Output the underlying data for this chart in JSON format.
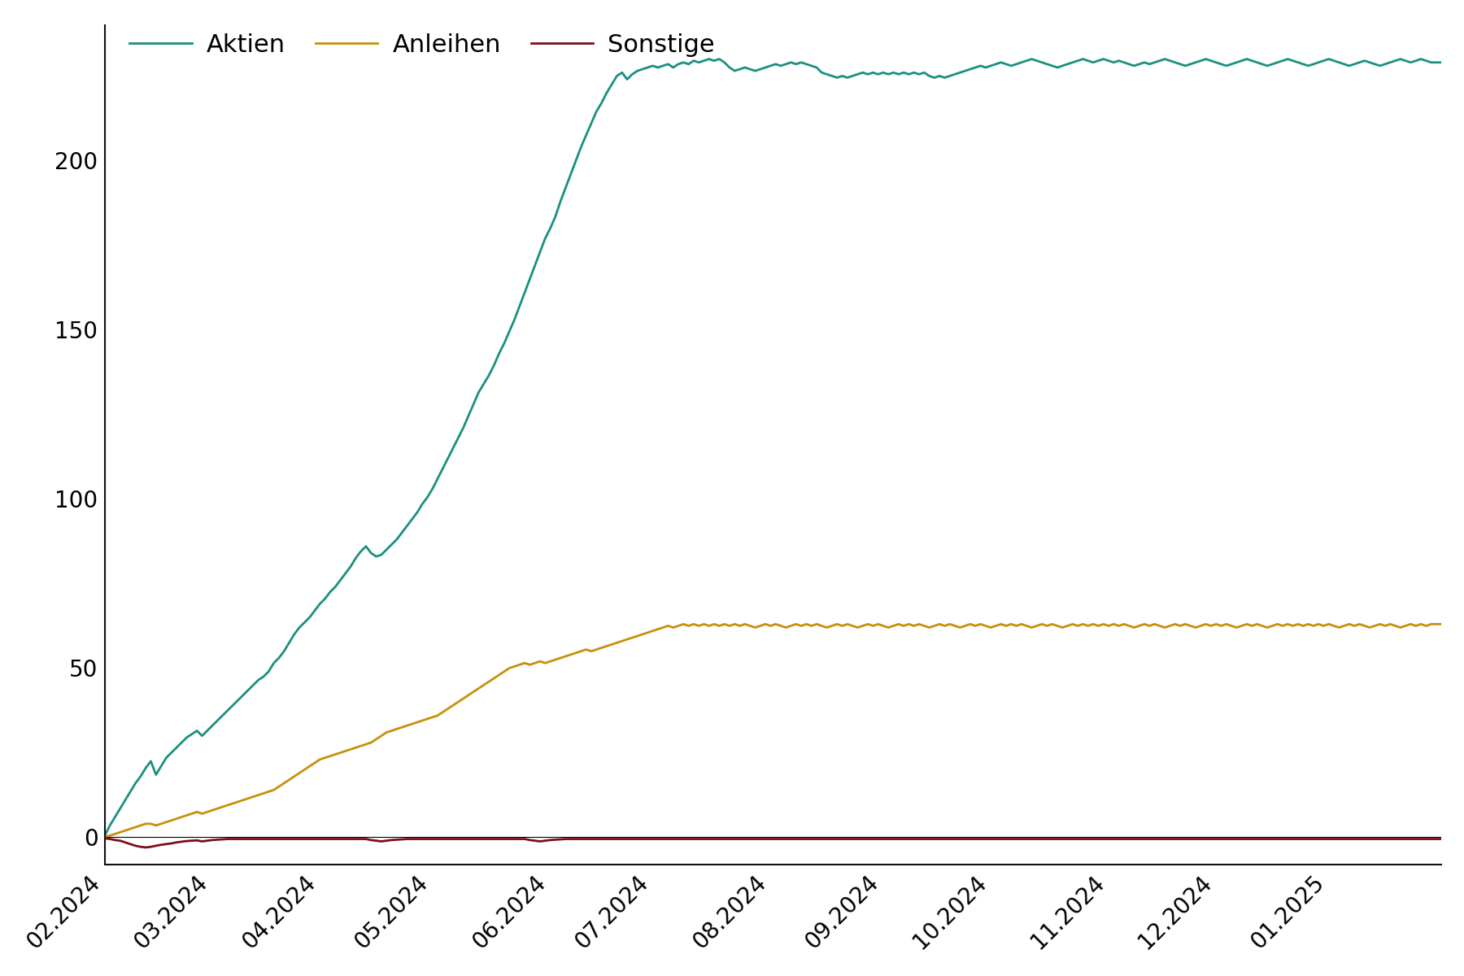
{
  "legend_labels": [
    "Aktien",
    "Anleihen",
    "Sonstige"
  ],
  "colors": {
    "Aktien": "#1a9080",
    "Anleihen": "#c8900a",
    "Sonstige": "#7b0d1e"
  },
  "line_width": 2.0,
  "x_tick_labels": [
    "02.2024",
    "03.2024",
    "04.2024",
    "05.2024",
    "06.2024",
    "07.2024",
    "08.2024",
    "09.2024",
    "10.2024",
    "11.2024",
    "12.2024",
    "01.2025"
  ],
  "ylim": [
    -8,
    240
  ],
  "yticks": [
    0,
    50,
    100,
    150,
    200
  ],
  "background_color": "#ffffff",
  "spine_color": "#111111",
  "tick_label_fontsize": 20,
  "legend_fontsize": 22,
  "Aktien": [
    0.5,
    3.5,
    6.0,
    8.5,
    11.0,
    13.5,
    16.0,
    18.0,
    20.5,
    22.5,
    18.5,
    21.0,
    23.5,
    25.0,
    26.5,
    28.0,
    29.5,
    30.5,
    31.5,
    30.0,
    31.5,
    33.0,
    34.5,
    36.0,
    37.5,
    39.0,
    40.5,
    42.0,
    43.5,
    45.0,
    46.5,
    47.5,
    49.0,
    51.5,
    53.0,
    55.0,
    57.5,
    60.0,
    62.0,
    63.5,
    65.0,
    67.0,
    69.0,
    70.5,
    72.5,
    74.0,
    76.0,
    78.0,
    80.0,
    82.5,
    84.5,
    86.0,
    84.0,
    83.0,
    83.5,
    85.0,
    86.5,
    88.0,
    90.0,
    92.0,
    94.0,
    96.0,
    98.5,
    100.5,
    103.0,
    106.0,
    109.0,
    112.0,
    115.0,
    118.0,
    121.0,
    124.5,
    128.0,
    131.5,
    134.0,
    136.5,
    139.5,
    143.0,
    146.0,
    149.5,
    153.0,
    157.0,
    161.0,
    165.0,
    169.0,
    173.0,
    177.0,
    180.0,
    183.5,
    188.0,
    192.0,
    196.0,
    200.0,
    204.0,
    207.5,
    211.0,
    214.5,
    217.0,
    220.0,
    222.5,
    225.0,
    226.0,
    224.0,
    225.5,
    226.5,
    227.0,
    227.5,
    228.0,
    227.5,
    228.0,
    228.5,
    227.5,
    228.5,
    229.0,
    228.5,
    229.5,
    229.0,
    229.5,
    230.0,
    229.5,
    230.0,
    229.0,
    227.5,
    226.5,
    227.0,
    227.5,
    227.0,
    226.5,
    227.0,
    227.5,
    228.0,
    228.5,
    228.0,
    228.5,
    229.0,
    228.5,
    229.0,
    228.5,
    228.0,
    227.5,
    226.0,
    225.5,
    225.0,
    224.5,
    225.0,
    224.5,
    225.0,
    225.5,
    226.0,
    225.5,
    226.0,
    225.5,
    226.0,
    225.5,
    226.0,
    225.5,
    226.0,
    225.5,
    226.0,
    225.5,
    226.0,
    225.0,
    224.5,
    225.0,
    224.5,
    225.0,
    225.5,
    226.0,
    226.5,
    227.0,
    227.5,
    228.0,
    227.5,
    228.0,
    228.5,
    229.0,
    228.5,
    228.0,
    228.5,
    229.0,
    229.5,
    230.0,
    229.5,
    229.0,
    228.5,
    228.0,
    227.5,
    228.0,
    228.5,
    229.0,
    229.5,
    230.0,
    229.5,
    229.0,
    229.5,
    230.0,
    229.5,
    229.0,
    229.5,
    229.0,
    228.5,
    228.0,
    228.5,
    229.0,
    228.5,
    229.0,
    229.5,
    230.0,
    229.5,
    229.0,
    228.5,
    228.0,
    228.5,
    229.0,
    229.5,
    230.0,
    229.5,
    229.0,
    228.5,
    228.0,
    228.5,
    229.0,
    229.5,
    230.0,
    229.5,
    229.0,
    228.5,
    228.0,
    228.5,
    229.0,
    229.5,
    230.0,
    229.5,
    229.0,
    228.5,
    228.0,
    228.5,
    229.0,
    229.5,
    230.0,
    229.5,
    229.0,
    228.5,
    228.0,
    228.5,
    229.0,
    229.5,
    229.0,
    228.5,
    228.0,
    228.5,
    229.0,
    229.5,
    230.0,
    229.5,
    229.0,
    229.5,
    230.0,
    229.5,
    229.0
  ],
  "Anleihen": [
    0.2,
    0.5,
    1.0,
    1.5,
    2.0,
    2.5,
    3.0,
    3.5,
    4.0,
    4.0,
    3.5,
    4.0,
    4.5,
    5.0,
    5.5,
    6.0,
    6.5,
    7.0,
    7.5,
    7.0,
    7.5,
    8.0,
    8.5,
    9.0,
    9.5,
    10.0,
    10.5,
    11.0,
    11.5,
    12.0,
    12.5,
    13.0,
    13.5,
    14.0,
    15.0,
    16.0,
    17.0,
    18.0,
    19.0,
    20.0,
    21.0,
    22.0,
    23.0,
    23.5,
    24.0,
    24.5,
    25.0,
    25.5,
    26.0,
    26.5,
    27.0,
    27.5,
    28.0,
    29.0,
    30.0,
    31.0,
    31.5,
    32.0,
    32.5,
    33.0,
    33.5,
    34.0,
    34.5,
    35.0,
    35.5,
    36.0,
    37.0,
    38.0,
    39.0,
    40.0,
    41.0,
    42.0,
    43.0,
    44.0,
    45.0,
    46.0,
    47.0,
    48.0,
    49.0,
    50.0,
    50.5,
    51.0,
    51.5,
    51.0,
    51.5,
    52.0,
    51.5,
    52.0,
    52.5,
    53.0,
    53.5,
    54.0,
    54.5,
    55.0,
    55.5,
    55.0,
    55.5,
    56.0,
    56.5,
    57.0,
    57.5,
    58.0,
    58.5,
    59.0,
    59.5,
    60.0,
    60.5,
    61.0,
    61.5,
    62.0,
    62.5,
    62.0,
    62.5,
    63.0,
    62.5,
    63.0,
    62.5,
    63.0,
    62.5,
    63.0,
    62.5,
    63.0,
    62.5,
    63.0,
    62.5,
    63.0,
    62.5,
    62.0,
    62.5,
    63.0,
    62.5,
    63.0,
    62.5,
    62.0,
    62.5,
    63.0,
    62.5,
    63.0,
    62.5,
    63.0,
    62.5,
    62.0,
    62.5,
    63.0,
    62.5,
    63.0,
    62.5,
    62.0,
    62.5,
    63.0,
    62.5,
    63.0,
    62.5,
    62.0,
    62.5,
    63.0,
    62.5,
    63.0,
    62.5,
    63.0,
    62.5,
    62.0,
    62.5,
    63.0,
    62.5,
    63.0,
    62.5,
    62.0,
    62.5,
    63.0,
    62.5,
    63.0,
    62.5,
    62.0,
    62.5,
    63.0,
    62.5,
    63.0,
    62.5,
    63.0,
    62.5,
    62.0,
    62.5,
    63.0,
    62.5,
    63.0,
    62.5,
    62.0,
    62.5,
    63.0,
    62.5,
    63.0,
    62.5,
    63.0,
    62.5,
    63.0,
    62.5,
    63.0,
    62.5,
    63.0,
    62.5,
    62.0,
    62.5,
    63.0,
    62.5,
    63.0,
    62.5,
    62.0,
    62.5,
    63.0,
    62.5,
    63.0,
    62.5,
    62.0,
    62.5,
    63.0,
    62.5,
    63.0,
    62.5,
    63.0,
    62.5,
    62.0,
    62.5,
    63.0,
    62.5,
    63.0,
    62.5,
    62.0,
    62.5,
    63.0,
    62.5,
    63.0,
    62.5,
    63.0,
    62.5,
    63.0,
    62.5,
    63.0,
    62.5,
    63.0,
    62.5,
    62.0,
    62.5,
    63.0,
    62.5,
    63.0,
    62.5,
    62.0,
    62.5,
    63.0,
    62.5,
    63.0,
    62.5,
    62.0,
    62.5,
    63.0,
    62.5,
    63.0,
    62.5,
    63.0
  ],
  "Sonstige": [
    -0.3,
    -0.5,
    -0.8,
    -1.0,
    -1.5,
    -2.0,
    -2.5,
    -2.8,
    -3.0,
    -2.8,
    -2.5,
    -2.2,
    -2.0,
    -1.8,
    -1.5,
    -1.3,
    -1.1,
    -1.0,
    -0.9,
    -1.2,
    -1.0,
    -0.8,
    -0.7,
    -0.6,
    -0.5,
    -0.5,
    -0.5,
    -0.5,
    -0.5,
    -0.5,
    -0.5,
    -0.5,
    -0.5,
    -0.5,
    -0.5,
    -0.5,
    -0.5,
    -0.5,
    -0.5,
    -0.5,
    -0.5,
    -0.5,
    -0.5,
    -0.5,
    -0.5,
    -0.5,
    -0.5,
    -0.5,
    -0.5,
    -0.5,
    -0.5,
    -0.5,
    -0.8,
    -1.0,
    -1.2,
    -1.0,
    -0.8,
    -0.7,
    -0.6,
    -0.5,
    -0.5,
    -0.5,
    -0.5,
    -0.5,
    -0.5,
    -0.5,
    -0.5,
    -0.5,
    -0.5,
    -0.5,
    -0.5,
    -0.5,
    -0.5,
    -0.5,
    -0.5,
    -0.5,
    -0.5,
    -0.5,
    -0.5,
    -0.5,
    -0.5,
    -0.5,
    -0.5,
    -0.8,
    -1.0,
    -1.2,
    -1.0,
    -0.8,
    -0.7,
    -0.6,
    -0.5,
    -0.5,
    -0.5,
    -0.5,
    -0.5,
    -0.5,
    -0.5,
    -0.5,
    -0.5,
    -0.5,
    -0.5,
    -0.5,
    -0.5,
    -0.5,
    -0.5,
    -0.5,
    -0.5,
    -0.5,
    -0.5,
    -0.5,
    -0.5,
    -0.5,
    -0.5,
    -0.5,
    -0.5,
    -0.5,
    -0.5,
    -0.5,
    -0.5,
    -0.5,
    -0.5,
    -0.5,
    -0.5,
    -0.5,
    -0.5,
    -0.5,
    -0.5,
    -0.5,
    -0.5,
    -0.5,
    -0.5,
    -0.5,
    -0.5,
    -0.5,
    -0.5,
    -0.5,
    -0.5,
    -0.5,
    -0.5,
    -0.5,
    -0.5,
    -0.5,
    -0.5,
    -0.5,
    -0.5,
    -0.5,
    -0.5,
    -0.5,
    -0.5,
    -0.5,
    -0.5,
    -0.5,
    -0.5,
    -0.5,
    -0.5,
    -0.5,
    -0.5,
    -0.5,
    -0.5,
    -0.5,
    -0.5,
    -0.5,
    -0.5,
    -0.5,
    -0.5,
    -0.5,
    -0.5,
    -0.5,
    -0.5,
    -0.5,
    -0.5,
    -0.5,
    -0.5,
    -0.5,
    -0.5,
    -0.5,
    -0.5,
    -0.5,
    -0.5,
    -0.5,
    -0.5,
    -0.5,
    -0.5,
    -0.5,
    -0.5,
    -0.5,
    -0.5,
    -0.5,
    -0.5,
    -0.5,
    -0.5,
    -0.5,
    -0.5,
    -0.5,
    -0.5,
    -0.5,
    -0.5,
    -0.5,
    -0.5,
    -0.5,
    -0.5,
    -0.5,
    -0.5,
    -0.5,
    -0.5,
    -0.5,
    -0.5,
    -0.5,
    -0.5,
    -0.5,
    -0.5,
    -0.5,
    -0.5,
    -0.5,
    -0.5,
    -0.5,
    -0.5,
    -0.5,
    -0.5,
    -0.5,
    -0.5,
    -0.5,
    -0.5,
    -0.5,
    -0.5,
    -0.5,
    -0.5,
    -0.5,
    -0.5,
    -0.5,
    -0.5,
    -0.5,
    -0.5,
    -0.5,
    -0.5,
    -0.5,
    -0.5,
    -0.5,
    -0.5,
    -0.5,
    -0.5,
    -0.5,
    -0.5,
    -0.5,
    -0.5,
    -0.5,
    -0.5,
    -0.5,
    -0.5,
    -0.5,
    -0.5,
    -0.5,
    -0.5,
    -0.5,
    -0.5,
    -0.5,
    -0.5,
    -0.5,
    -0.5,
    -0.5
  ]
}
